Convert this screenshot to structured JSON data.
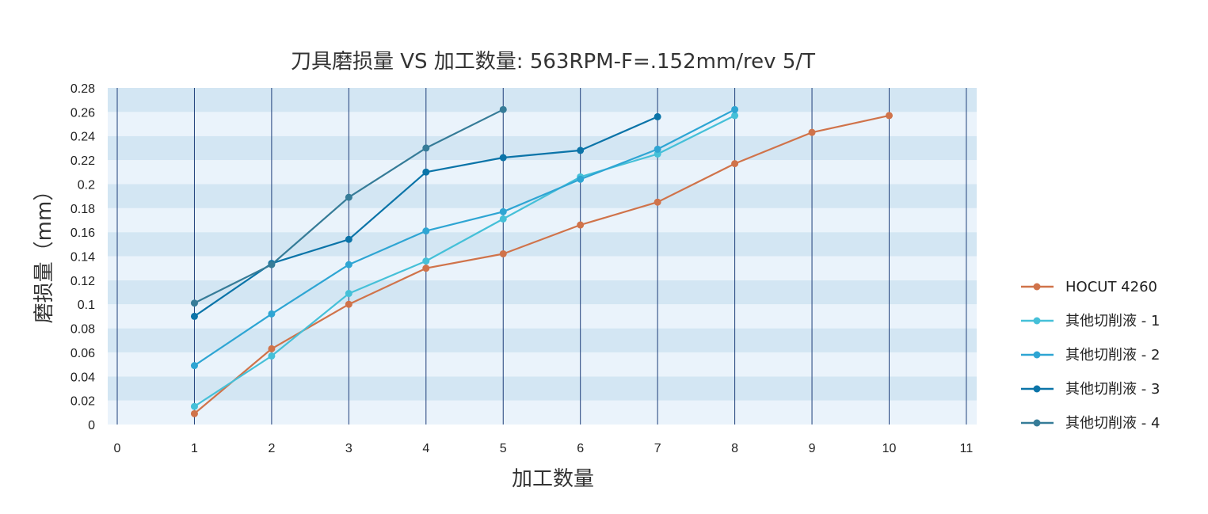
{
  "chart_data": {
    "type": "line",
    "title": "刀具磨损量 VS 加工数量: 563RPM-F=.152mm/rev  5/T",
    "xlabel": "加工数量",
    "ylabel": "磨损量（mm）",
    "xlim": [
      0,
      11
    ],
    "ylim": [
      0,
      0.28
    ],
    "x_ticks": [
      0,
      1,
      2,
      3,
      4,
      5,
      6,
      7,
      8,
      9,
      10,
      11
    ],
    "y_ticks": [
      0,
      0.02,
      0.04,
      0.06,
      0.08,
      0.1,
      0.12,
      0.14,
      0.16,
      0.18,
      0.2,
      0.22,
      0.24,
      0.26,
      0.28
    ],
    "y_tick_labels": [
      "0",
      "0.02",
      "0.04",
      "0.06",
      "0.08",
      "0.1",
      "0.12",
      "0.14",
      "0.16",
      "0.18",
      "0.2",
      "0.22",
      "0.24",
      "0.26",
      "0.28"
    ],
    "grid": "vertical lines at each x, alternating horizontal bands",
    "legend_position": "right",
    "series": [
      {
        "name": "HOCUT 4260",
        "color": "#D0734A",
        "x": [
          1,
          2,
          3,
          4,
          5,
          6,
          7,
          8,
          9,
          10
        ],
        "y": [
          0.009,
          0.063,
          0.1,
          0.13,
          0.142,
          0.166,
          0.185,
          0.217,
          0.243,
          0.257
        ]
      },
      {
        "name": "其他切削液 - 1",
        "color": "#45C0D8",
        "x": [
          1,
          2,
          3,
          4,
          5,
          6,
          7,
          8
        ],
        "y": [
          0.015,
          0.057,
          0.109,
          0.136,
          0.171,
          0.206,
          0.225,
          0.257
        ]
      },
      {
        "name": "其他切削液 - 2",
        "color": "#2EA5D3",
        "x": [
          1,
          2,
          3,
          4,
          5,
          6,
          7,
          8
        ],
        "y": [
          0.049,
          0.092,
          0.133,
          0.161,
          0.177,
          0.204,
          0.229,
          0.262
        ]
      },
      {
        "name": "其他切削液 - 3",
        "color": "#0B74A8",
        "x": [
          1,
          2,
          3,
          4,
          5,
          6,
          7
        ],
        "y": [
          0.09,
          0.134,
          0.154,
          0.21,
          0.222,
          0.228,
          0.256
        ]
      },
      {
        "name": "其他切削液 - 4",
        "color": "#367C98",
        "x": [
          1,
          2,
          3,
          4,
          5
        ],
        "y": [
          0.101,
          0.133,
          0.189,
          0.23,
          0.262
        ]
      }
    ]
  }
}
